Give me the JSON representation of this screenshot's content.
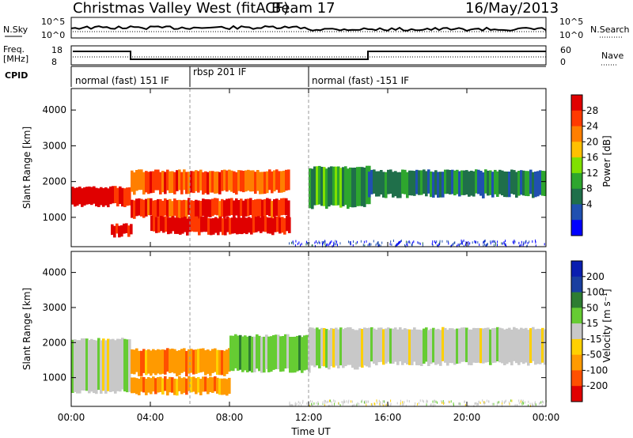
{
  "header": {
    "title": "Christmas Valley West (fitACF)",
    "beam": "Beam 17",
    "date": "16/May/2013"
  },
  "panels": {
    "nsky_label": "N.Sky",
    "nsky_ticks": [
      "10^5",
      "10^0"
    ],
    "nsearch_label": "N.Search",
    "freq_label_1": "Freq.",
    "freq_label_2": "[MHz]",
    "freq_ticks": [
      "18",
      "8"
    ],
    "nave_ticks": [
      "60",
      "0"
    ],
    "nave_label": "Nave",
    "cpid_label": "CPID",
    "cpid_segments": [
      "normal (fast) 151 IF",
      "rbsp 201 IF",
      "normal (fast) -151 IF"
    ]
  },
  "axes": {
    "ylabel": "Slant Range [km]",
    "yticks": [
      "4000",
      "3000",
      "2000",
      "1000"
    ],
    "xticks": [
      "00:00",
      "04:00",
      "08:00",
      "12:00",
      "16:00",
      "20:00",
      "00:00"
    ],
    "xlabel": "Time UT"
  },
  "power_colorbar": {
    "label": "Power [dB]",
    "ticks": [
      "28",
      "24",
      "20",
      "16",
      "12",
      "8",
      "4"
    ],
    "colors": [
      "#e00000",
      "#ff3a00",
      "#ff7f00",
      "#ffc000",
      "#80e000",
      "#2ea62e",
      "#1f6f4a",
      "#2050b0",
      "#0000ff"
    ]
  },
  "velocity_colorbar": {
    "label": "Velocity [m s⁻¹]",
    "ticks": [
      "200",
      "100",
      "50",
      "15",
      "-15",
      "-50",
      "-100",
      "-200"
    ],
    "colors": [
      "#0a1eb0",
      "#1a3fa0",
      "#2e7d32",
      "#66cc33",
      "#c8c8c8",
      "#ffd000",
      "#ff9a00",
      "#ff5000",
      "#e00000"
    ]
  },
  "chart_data": [
    {
      "type": "heatmap",
      "title": "Power",
      "xlabel": "Time UT",
      "ylabel": "Slant Range [km]",
      "xlim_hours": [
        0,
        24
      ],
      "ylim_km": [
        180,
        4600
      ],
      "colorbar_label": "Power [dB]",
      "bands": [
        {
          "t0": 0,
          "t1": 3,
          "r_lo": 1350,
          "r_hi": 1850,
          "level_db": 28
        },
        {
          "t0": 2,
          "t1": 3,
          "r_lo": 500,
          "r_hi": 800,
          "level_db": 28
        },
        {
          "t0": 3,
          "t1": 11,
          "r_lo": 1000,
          "r_hi": 1500,
          "level_db": 26
        },
        {
          "t0": 3,
          "t1": 11,
          "r_lo": 1700,
          "r_hi": 2300,
          "level_db": 24
        },
        {
          "t0": 4,
          "t1": 11,
          "r_lo": 550,
          "r_hi": 1000,
          "level_db": 28
        },
        {
          "t0": 12,
          "t1": 15,
          "r_lo": 1300,
          "r_hi": 2400,
          "level_db": 12
        },
        {
          "t0": 15,
          "t1": 24,
          "r_lo": 1600,
          "r_hi": 2300,
          "level_db": 10
        }
      ]
    },
    {
      "type": "heatmap",
      "title": "Velocity",
      "xlabel": "Time UT",
      "ylabel": "Slant Range [km]",
      "xlim_hours": [
        0,
        24
      ],
      "ylim_km": [
        180,
        4600
      ],
      "colorbar_label": "Velocity [m s⁻¹]",
      "bands": [
        {
          "t0": 0,
          "t1": 3,
          "r_lo": 600,
          "r_hi": 2100,
          "vel": 0
        },
        {
          "t0": 3,
          "t1": 8,
          "r_lo": 1100,
          "r_hi": 1800,
          "vel": -60
        },
        {
          "t0": 3,
          "t1": 8,
          "r_lo": 550,
          "r_hi": 1000,
          "vel": -60
        },
        {
          "t0": 8,
          "t1": 12,
          "r_lo": 1200,
          "r_hi": 2200,
          "vel": 30
        },
        {
          "t0": 12,
          "t1": 15,
          "r_lo": 1300,
          "r_hi": 2400,
          "vel": 20
        },
        {
          "t0": 15,
          "t1": 24,
          "r_lo": 1400,
          "r_hi": 2400,
          "vel": 0
        }
      ]
    }
  ]
}
